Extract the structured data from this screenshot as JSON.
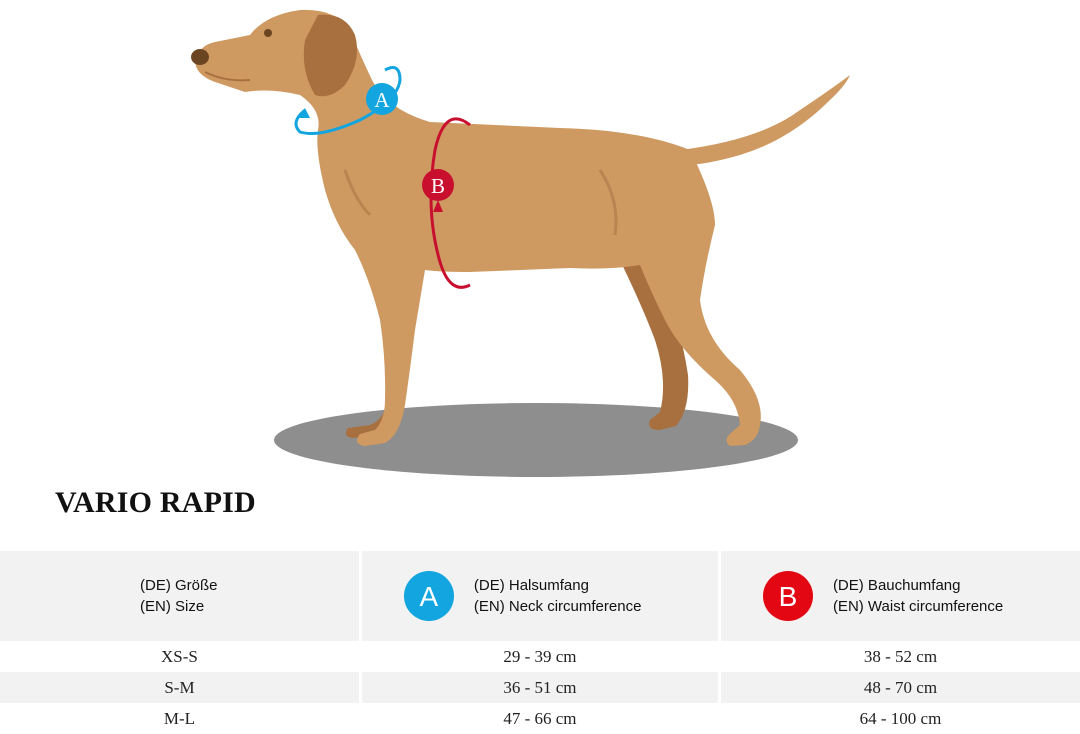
{
  "product_title": "VARIO RAPID",
  "markers": {
    "a": "A",
    "b": "B"
  },
  "colors": {
    "marker_a": "#12a5df",
    "marker_b": "#e30613",
    "dog": "#cf9a62",
    "shadow": "#8e8e8e"
  },
  "table": {
    "headers": {
      "size": {
        "de": "(DE) Größe",
        "en": "(EN) Size"
      },
      "neck": {
        "de": "(DE) Halsumfang",
        "en": "(EN) Neck circumference"
      },
      "waist": {
        "de": "(DE) Bauchumfang",
        "en": "(EN) Waist circumference"
      }
    },
    "rows": [
      {
        "size": "XS-S",
        "neck": "29 - 39 cm",
        "waist": "38 - 52 cm"
      },
      {
        "size": "S-M",
        "neck": "36 - 51 cm",
        "waist": "48 - 70 cm"
      },
      {
        "size": "M-L",
        "neck": "47 - 66 cm",
        "waist": "64 - 100 cm"
      }
    ]
  }
}
